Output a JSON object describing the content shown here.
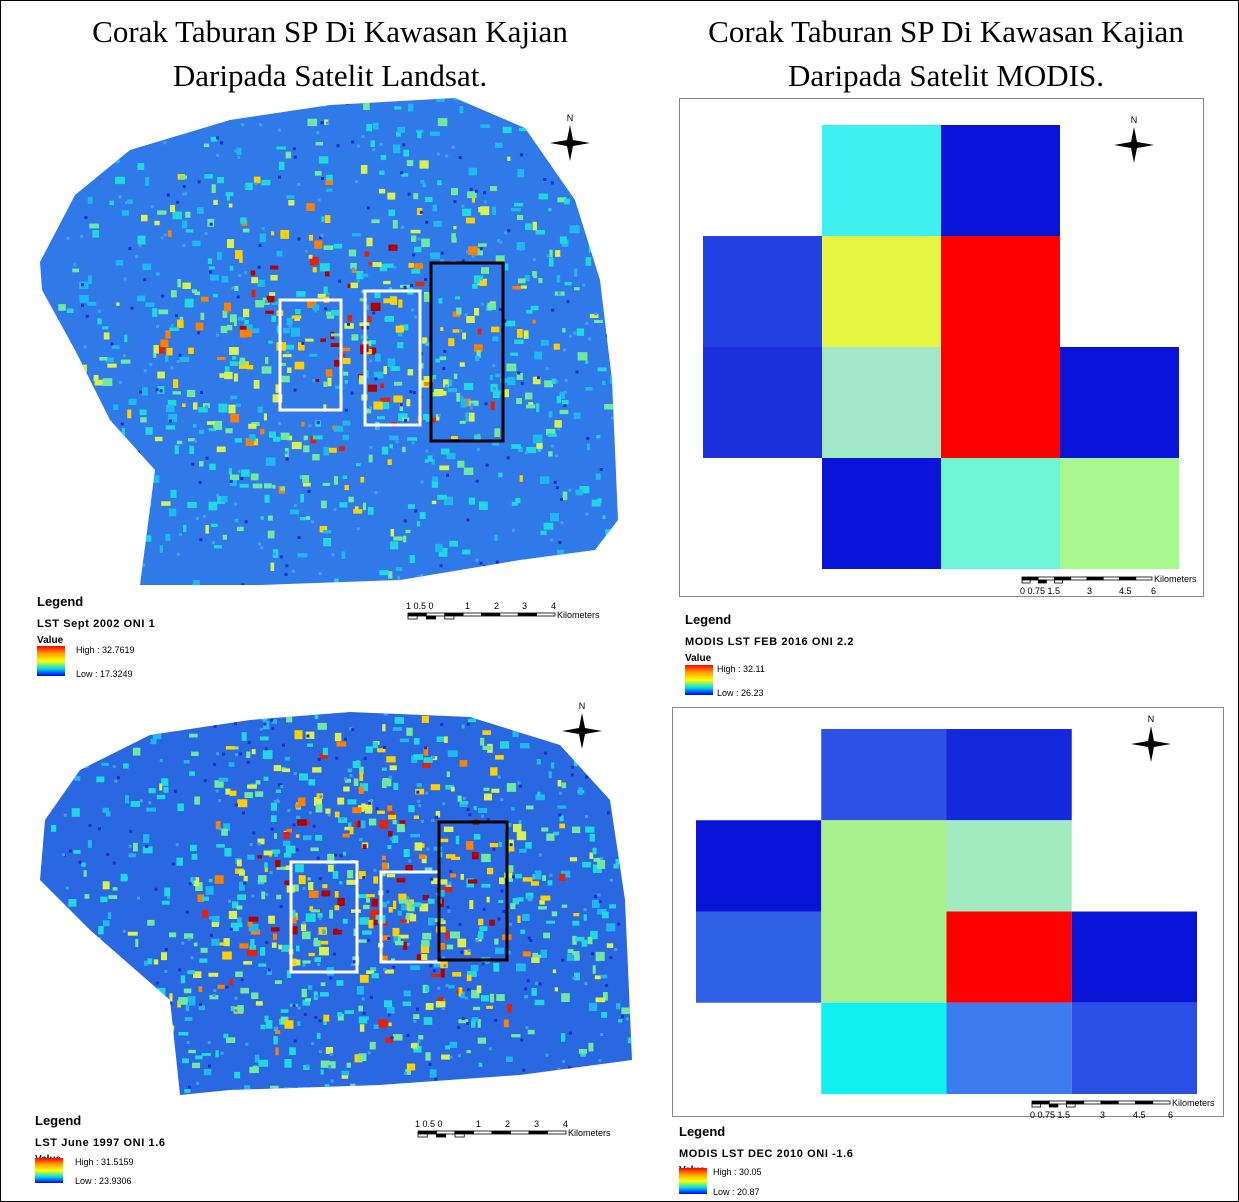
{
  "headers": [
    "Corak Taburan SP Di Kawasan Kajian Daripada Satelit Landsat.",
    "Corak Taburan SP Di Kawasan Kajian Daripada Satelit MODIS."
  ],
  "panels": [
    {
      "north": "N",
      "legend": "Legend",
      "layer": "LST Sept 2002 ONI 1",
      "value": "Value",
      "high": "High : 32.7619",
      "low": "Low : 17.3249",
      "scale_labels": [
        "1 0.5 0",
        "1",
        "2",
        "3",
        "4"
      ],
      "scale_unit": "Kilometers"
    },
    {
      "north": "N",
      "legend": "Legend",
      "layer": "MODIS LST FEB 2016 ONI 2.2",
      "value": "Value",
      "high": "High : 32.11",
      "low": "Low : 26.23",
      "scale_labels": [
        "0 0.75 1.5",
        "3",
        "4.5",
        "6"
      ],
      "scale_unit": "Kilometers"
    },
    {
      "north": "N",
      "legend": "Legend",
      "layer": "LST June 1997 ONI 1.6",
      "value": "Value",
      "high": "High : 31.5159",
      "low": "Low : 23.9306",
      "scale_labels": [
        "1 0.5 0",
        "1",
        "2",
        "3",
        "4"
      ],
      "scale_unit": "Kilometers"
    },
    {
      "north": "N",
      "legend": "Legend",
      "layer": "MODIS LST DEC 2010 ONI -1.6",
      "value": "Value",
      "high": "High : 30.05",
      "low": "Low : 20.87",
      "scale_labels": [
        "0 0.75 1.5",
        "3",
        "4.5",
        "6"
      ],
      "scale_unit": "Kilometers"
    }
  ]
}
